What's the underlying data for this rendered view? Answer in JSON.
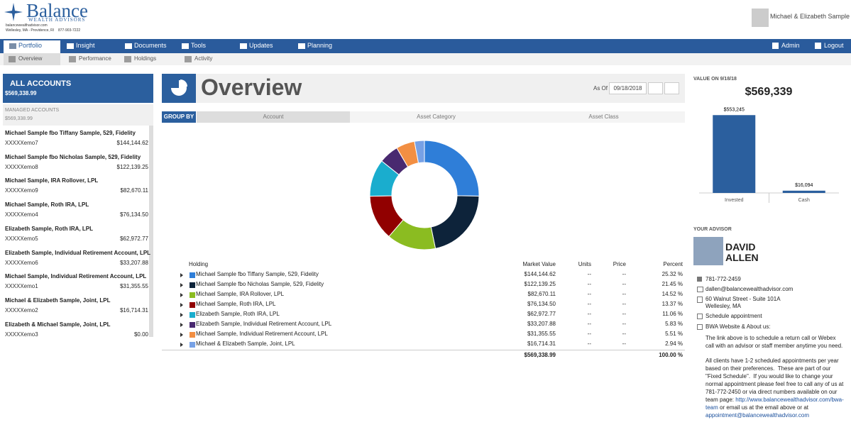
{
  "header": {
    "brand": "Balance",
    "brand_sub": "WEALTH ADVISORS",
    "site": "balancewealthadvisor.com",
    "locations": "Wellesley, MA - Providence, RI",
    "phone": "877-903-7222",
    "user": "Michael & Elizabeth Sample"
  },
  "nav": {
    "items": [
      "Portfolio",
      "Insight",
      "Documents",
      "Tools",
      "Updates",
      "Planning"
    ],
    "right": [
      "Admin",
      "Logout"
    ]
  },
  "subnav": [
    "Overview",
    "Performance",
    "Holdings",
    "Activity"
  ],
  "sidebar": {
    "all_label": "ALL ACCOUNTS",
    "all_total": "$569,338.99",
    "managed_label": "MANAGED ACCOUNTS",
    "managed_total": "$569,338.99",
    "accounts": [
      {
        "name": "Michael Sample fbo Tiffany Sample, 529, Fidelity",
        "number": "XXXXXemo7",
        "value": "$144,144.62"
      },
      {
        "name": "Michael Sample fbo Nicholas Sample, 529, Fidelity",
        "number": "XXXXXemo8",
        "value": "$122,139.25"
      },
      {
        "name": "Michael Sample, IRA Rollover, LPL",
        "number": "XXXXXemo9",
        "value": "$82,670.11"
      },
      {
        "name": "Michael Sample, Roth IRA, LPL",
        "number": "XXXXXemo4",
        "value": "$76,134.50"
      },
      {
        "name": "Elizabeth Sample, Roth IRA, LPL",
        "number": "XXXXXemo5",
        "value": "$62,972.77"
      },
      {
        "name": "Elizabeth Sample, Individual Retirement Account, LPL",
        "number": "XXXXXemo6",
        "value": "$33,207.88"
      },
      {
        "name": "Michael Sample, Individual Retirement Account, LPL",
        "number": "XXXXXemo1",
        "value": "$31,355.55"
      },
      {
        "name": "Michael & Elizabeth Sample, Joint, LPL",
        "number": "XXXXXemo2",
        "value": "$16,714.31"
      },
      {
        "name": "Elizabeth & Michael Sample, Joint, LPL",
        "number": "XXXXXemo3",
        "value": "$0.00"
      }
    ]
  },
  "overview": {
    "title": "Overview",
    "as_of_label": "As Of",
    "as_of": "09/18/2018",
    "group_by": "GROUP BY",
    "tabs": [
      "Account",
      "Asset Category",
      "Asset Class"
    ]
  },
  "holdings": {
    "columns": [
      "Holding",
      "Market Value",
      "Units",
      "Price",
      "Percent"
    ],
    "rows": [
      {
        "market_value": "$144,144.62",
        "units": "--",
        "price": "--"
      },
      {
        "market_value": "$122,139.25",
        "units": "--",
        "price": "--"
      },
      {
        "market_value": "$82,670.11",
        "units": "--",
        "price": "--"
      },
      {
        "market_value": "$76,134.50",
        "units": "--",
        "price": "--"
      },
      {
        "market_value": "$62,972.77",
        "units": "--",
        "price": "--"
      },
      {
        "market_value": "$33,207.88",
        "units": "--",
        "price": "--"
      },
      {
        "market_value": "$31,355.55",
        "units": "--",
        "price": "--"
      },
      {
        "market_value": "$16,714.31",
        "units": "--",
        "price": "--"
      }
    ],
    "total_value": "$569,338.99",
    "total_percent": "100.00 %"
  },
  "chart_data": [
    {
      "type": "pie",
      "categories": [
        "Michael Sample fbo Tiffany Sample, 529, Fidelity",
        "Michael Sample fbo Nicholas Sample, 529, Fidelity",
        "Michael Sample, IRA Rollover, LPL",
        "Michael Sample, Roth IRA, LPL",
        "Elizabeth Sample, Roth IRA, LPL",
        "Elizabeth Sample, Individual Retirement Account, LPL",
        "Michael Sample, Individual Retirement Account, LPL",
        "Michael & Elizabeth Sample, Joint, LPL"
      ],
      "values": [
        25.32,
        21.45,
        14.52,
        13.37,
        11.06,
        5.83,
        5.51,
        2.94
      ],
      "value_labels": [
        "25.32 %",
        "21.45 %",
        "14.52 %",
        "13.37 %",
        "11.06 %",
        "5.83 %",
        "5.51 %",
        "2.94 %"
      ],
      "colors": [
        "#2f7ed8",
        "#0d233a",
        "#8bbc21",
        "#910000",
        "#1aadce",
        "#492970",
        "#f28f43",
        "#77a1e5"
      ]
    },
    {
      "type": "bar",
      "title": "VALUE ON 9/18/18",
      "headline": "$569,339",
      "categories": [
        "Invested",
        "Cash"
      ],
      "values": [
        553245,
        16094
      ],
      "value_labels": [
        "$553,245",
        "$16,094"
      ],
      "color": "#2b5f9e",
      "ylim": [
        0,
        600000
      ]
    }
  ],
  "advisor": {
    "label": "YOUR ADVISOR",
    "first_name": "DAVID",
    "last_name": "ALLEN",
    "phone": "781-772-2459",
    "email": "dallen@balancewealthadvisor.com",
    "address": [
      "60 Walnut Street - Suite 101A",
      "Wellesley, MA"
    ],
    "schedule": "Schedule appointment",
    "website": "BWA Website & About us:",
    "note": "The link above is to schedule a return call or Webex call with an advisor or staff member anytime you need.",
    "policy": "All clients have 1-2 scheduled appointments per year based on their preferences.  These are part of our \"Fixed Schedule\".  If you would like to change your normal appointment please feel free to call any of us at 781-772-2450 or via direct numbers available on our team page:",
    "team_link": "http://www.balancewealthadvisor.com/bwa-team",
    "or_email": "or email us at the email above or at",
    "appt_email": "appointment@balancewealthadvisor.com"
  }
}
